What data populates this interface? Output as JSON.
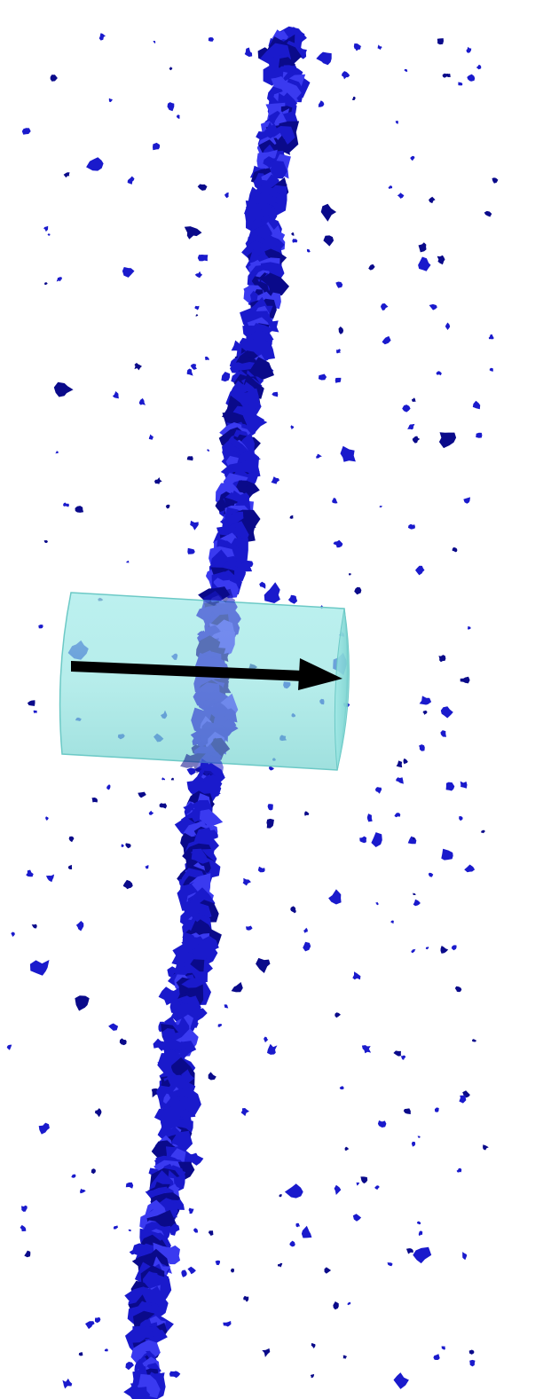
{
  "scene": {
    "background": "#ffffff",
    "subject": "visualization",
    "colors": {
      "isosurface": "#1a1acc",
      "isosurface_dark": "#0a0a8a",
      "isosurface_light": "#3a3af0",
      "cylinder_fill": "#8fe3e0",
      "cylinder_edge": "#6cc9c6",
      "arrow": "#000000"
    },
    "icons": {
      "filament": "blue-isosurface-filament",
      "particles": "scattered-blue-blobs",
      "probe": "translucent-cyan-cylinder",
      "direction": "black-arrow"
    }
  }
}
